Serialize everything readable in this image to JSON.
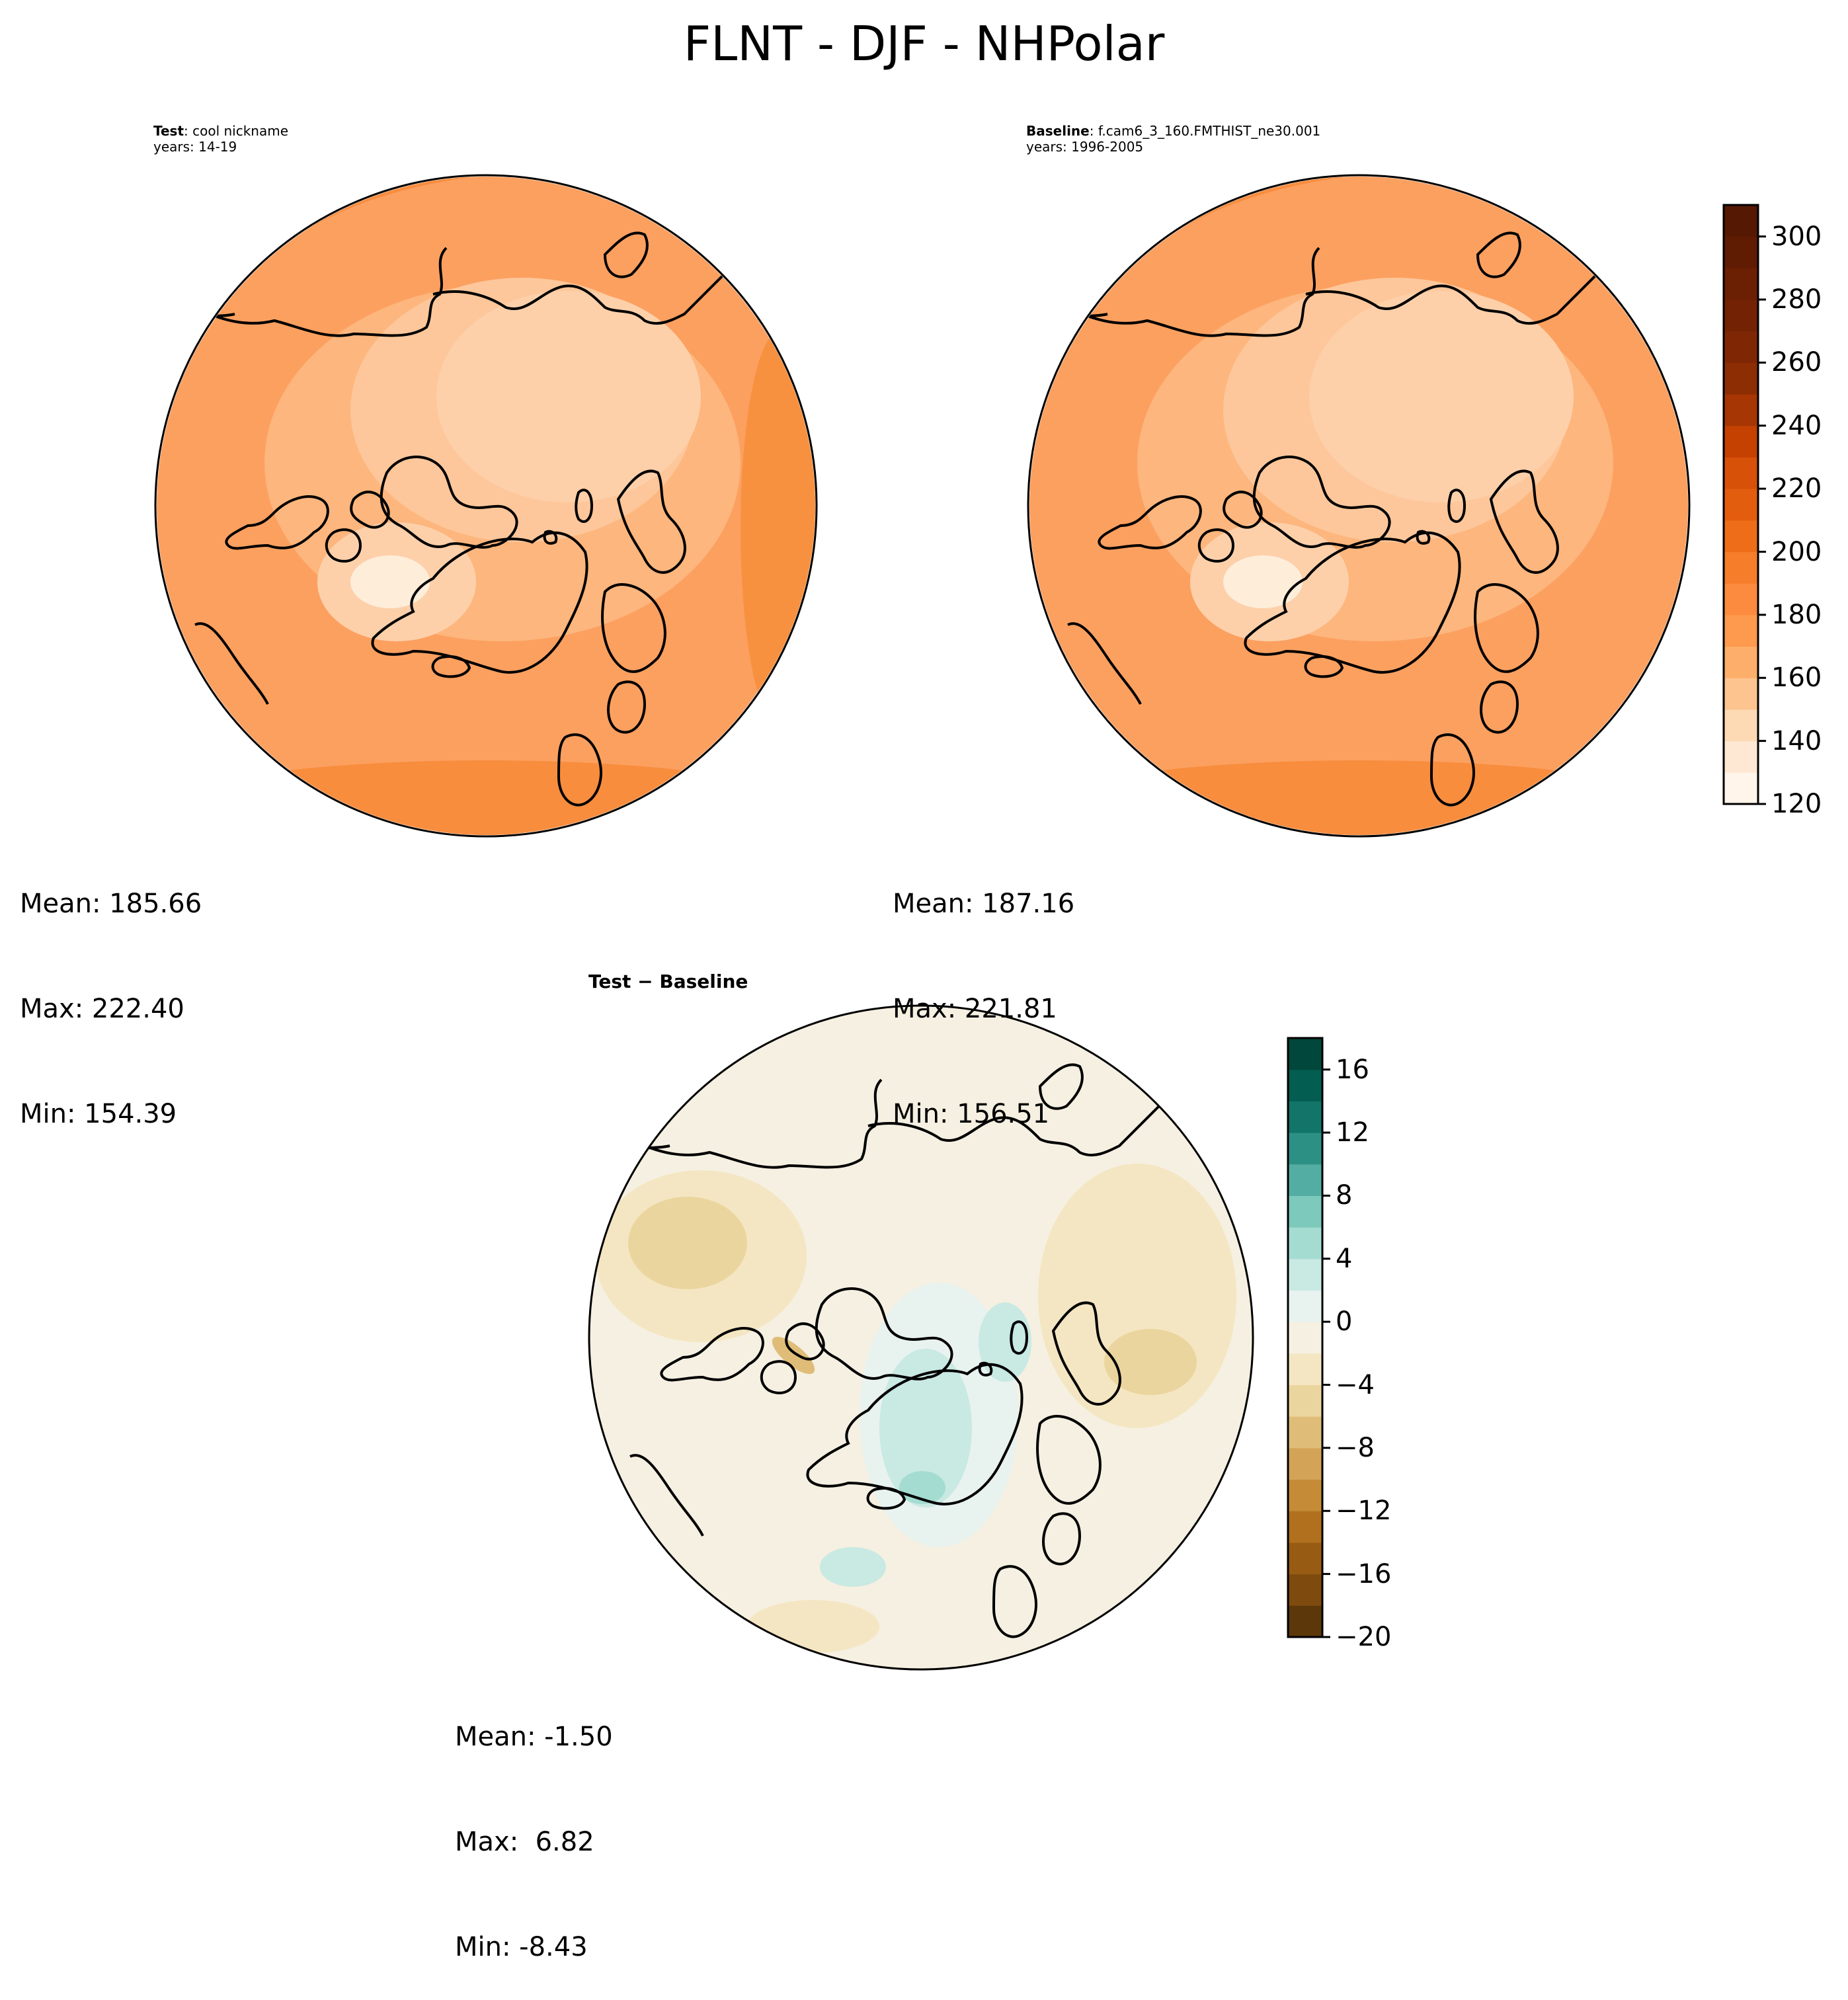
{
  "figure": {
    "title": "FLNT - DJF - NHPolar"
  },
  "panels": {
    "test": {
      "label_bold": "Test",
      "label_rest": ": cool nickname",
      "years": "years: 14-19",
      "stats": {
        "mean": "Mean: 185.66",
        "max": "Max: 222.40",
        "min": "Min: 154.39"
      }
    },
    "baseline": {
      "label_bold": "Baseline",
      "label_rest": ": f.cam6_3_160.FMTHIST_ne30.001",
      "years": "years: 1996-2005",
      "stats": {
        "mean": "Mean: 187.16",
        "max": "Max: 221.81",
        "min": "Min: 156.51"
      }
    },
    "difference": {
      "title": "Test − Baseline",
      "stats": {
        "mean": "Mean: -1.50",
        "max": "Max:  6.82",
        "min": "Min: -8.43"
      }
    }
  },
  "colorbars": {
    "main": {
      "colormap": "Oranges",
      "range": [
        120,
        310
      ],
      "boundaries": [
        120,
        130,
        140,
        150,
        160,
        170,
        180,
        190,
        200,
        210,
        220,
        230,
        240,
        250,
        260,
        270,
        280,
        290,
        300,
        310
      ],
      "colors": [
        "#fff5eb",
        "#fee8d3",
        "#fdd9b4",
        "#fdc48f",
        "#fdae6b",
        "#fd9a4e",
        "#fc8b3f",
        "#f67d2a",
        "#ee6d19",
        "#e35d0e",
        "#d85108",
        "#c44102",
        "#a63603",
        "#8c2d04",
        "#7f2704",
        "#732203",
        "#6b1f03",
        "#601c03",
        "#551903"
      ],
      "ticks": [
        "120",
        "140",
        "160",
        "180",
        "200",
        "220",
        "240",
        "260",
        "280",
        "300"
      ]
    },
    "diff": {
      "colormap": "BrBG",
      "range": [
        -20,
        18
      ],
      "boundaries": [
        -20,
        -18,
        -16,
        -14,
        -12,
        -10,
        -8,
        -6,
        -4,
        -2,
        0,
        2,
        4,
        6,
        8,
        10,
        12,
        14,
        16,
        18
      ],
      "colors": [
        "#5c3709",
        "#7e4a0e",
        "#975b13",
        "#b0701d",
        "#c58b37",
        "#d3a457",
        "#dfbd79",
        "#ebd59e",
        "#f4e6c2",
        "#f5f0e1",
        "#e8f2ef",
        "#c9e9e3",
        "#a4dcd2",
        "#7dc9bb",
        "#54ada2",
        "#2d9085",
        "#137469",
        "#045d51",
        "#01473b"
      ],
      "ticks": [
        "−20",
        "−16",
        "−12",
        "−8",
        "−4",
        "0",
        "4",
        "8",
        "12",
        "16"
      ]
    }
  }
}
